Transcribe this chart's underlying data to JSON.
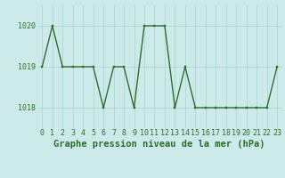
{
  "x": [
    0,
    1,
    2,
    3,
    4,
    5,
    6,
    7,
    8,
    9,
    10,
    11,
    12,
    13,
    14,
    15,
    16,
    17,
    18,
    19,
    20,
    21,
    22,
    23
  ],
  "y": [
    1019,
    1020,
    1019,
    1019,
    1019,
    1019,
    1018,
    1019,
    1019,
    1018,
    1020,
    1020,
    1020,
    1018,
    1019,
    1018,
    1018,
    1018,
    1018,
    1018,
    1018,
    1018,
    1018,
    1019
  ],
  "line_color": "#2d6e2d",
  "marker_color": "#2d6e2d",
  "bg_color": "#cceaea",
  "grid_color": "#a8d4d4",
  "title": "Graphe pression niveau de la mer (hPa)",
  "ylim": [
    1017.5,
    1020.5
  ],
  "yticks": [
    1018,
    1019,
    1020
  ],
  "xlim": [
    -0.5,
    23.5
  ],
  "xticks": [
    0,
    1,
    2,
    3,
    4,
    5,
    6,
    7,
    8,
    9,
    10,
    11,
    12,
    13,
    14,
    15,
    16,
    17,
    18,
    19,
    20,
    21,
    22,
    23
  ],
  "title_fontsize": 7.5,
  "tick_fontsize": 6.0,
  "linewidth": 1.0,
  "markersize": 2.0
}
